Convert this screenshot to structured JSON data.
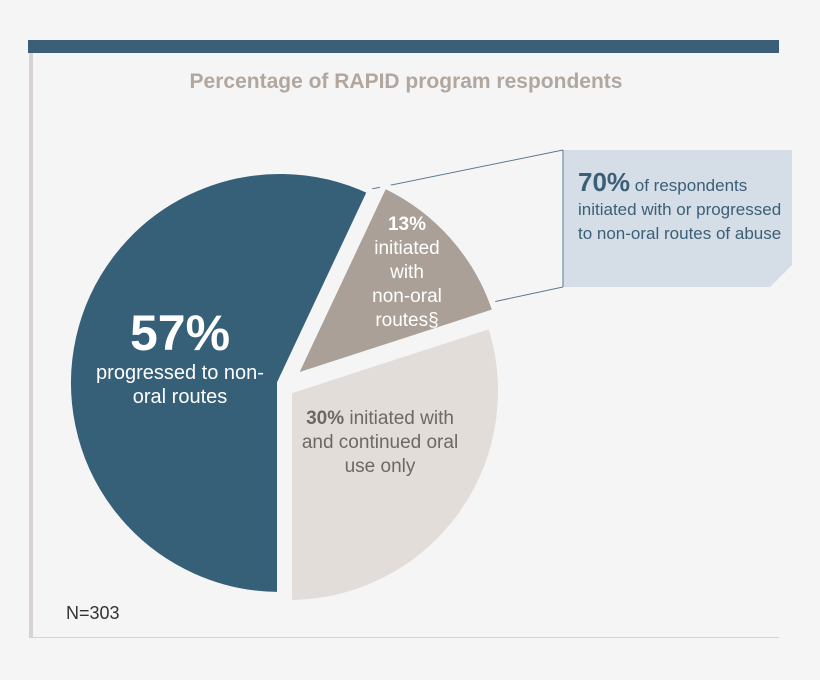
{
  "chart_data": {
    "type": "pie",
    "title": "Percentage of RAPID program respondents",
    "slices": [
      {
        "label": "progressed to non-oral routes",
        "value": 57,
        "display": "57%",
        "color": "#365f78"
      },
      {
        "label": "initiated with non-oral routes§",
        "value": 13,
        "display": "13%",
        "color": "#aaa097"
      },
      {
        "label": "initiated with and continued oral use only",
        "value": 30,
        "display": "30%",
        "color": "#e2ddd9"
      }
    ],
    "callout": {
      "value": "70%",
      "text": "of respondents initiated with or progressed to non-oral routes of abuse",
      "color": "#d5dde6"
    },
    "note": "N=303"
  },
  "labels": {
    "s57_text": "progressed to non-oral routes",
    "s13_line1": "initiated",
    "s13_line2": "with",
    "s13_line3": "non-oral",
    "s13_line4": "routes§",
    "s30_text": "initiated with and continued oral use only"
  }
}
